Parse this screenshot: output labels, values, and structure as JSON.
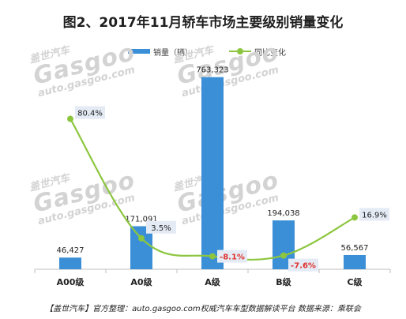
{
  "chart_data": {
    "type": "bar",
    "title": "图2、2017年11月轿车市场主要级别销量变化",
    "categories": [
      "A00级",
      "A0级",
      "A级",
      "B级",
      "C级"
    ],
    "series": [
      {
        "name": "销量（辆）",
        "type": "bar",
        "color": "#3b8fd6",
        "values": [
          46427,
          171091,
          763323,
          194038,
          56567
        ],
        "labels": [
          "46,427",
          "171,091",
          "763,323",
          "194,038",
          "56,567"
        ]
      },
      {
        "name": "同比变化",
        "type": "line",
        "color": "#8cc63f",
        "values": [
          80.4,
          3.5,
          -8.1,
          -7.6,
          16.9
        ],
        "labels": [
          "80.4%",
          "3.5%",
          "-8.1%",
          "-7.6%",
          "16.9%"
        ]
      }
    ],
    "xlabel": "",
    "ylabel": "",
    "ylim": [
      0,
      800000
    ],
    "y2lim": [
      -20,
      100
    ],
    "grid": false,
    "legend": "top-center"
  },
  "watermark": {
    "brand": "Gasgoo",
    "cn": "盖世汽车",
    "url": "auto.gasgoo.com"
  },
  "footer": "【盖世汽车】官方整理：auto.gasgoo.com权威汽车车型数据解读平台  数据来源：乘联会"
}
